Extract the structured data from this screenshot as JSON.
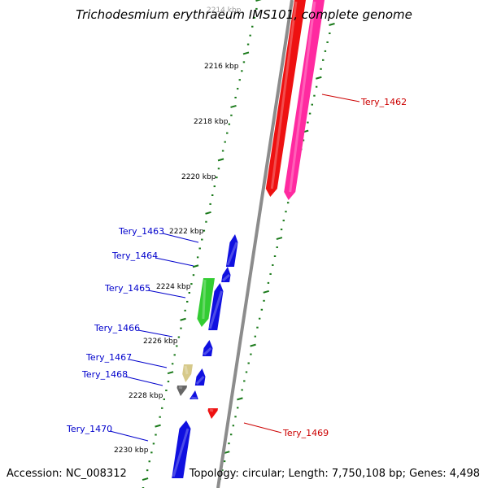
{
  "title": "Trichodesmium erythraeum IMS101, complete genome",
  "footer": {
    "accession": "Accession: NC_008312",
    "summary": "Topology: circular; Length: 7,750,108 bp; Genes: 4,498"
  },
  "colors": {
    "backbone": "#8c8c8c",
    "tick": "#1a7a1a",
    "label_left": "#0000cc",
    "label_right": "#cc0000",
    "gene_blue": "#1010e0",
    "gene_green": "#33cc33",
    "gene_khaki": "#d6c98a",
    "gene_gray": "#666666",
    "gene_red": "#ee1111",
    "gene_pink": "#ff2aa0"
  },
  "scale_labels": [
    "2214 kbp",
    "2216 kbp",
    "2218 kbp",
    "2220 kbp",
    "2222 kbp",
    "2224 kbp",
    "2226 kbp",
    "2228 kbp",
    "2230 kbp"
  ],
  "gene_labels": [
    {
      "name": "Tery_1462",
      "side": "right"
    },
    {
      "name": "Tery_1463",
      "side": "left"
    },
    {
      "name": "Tery_1464",
      "side": "left"
    },
    {
      "name": "Tery_1465",
      "side": "left"
    },
    {
      "name": "Tery_1466",
      "side": "left"
    },
    {
      "name": "Tery_1467",
      "side": "left"
    },
    {
      "name": "Tery_1468",
      "side": "left"
    },
    {
      "name": "Tery_1469",
      "side": "right"
    },
    {
      "name": "Tery_1470",
      "side": "left"
    }
  ]
}
